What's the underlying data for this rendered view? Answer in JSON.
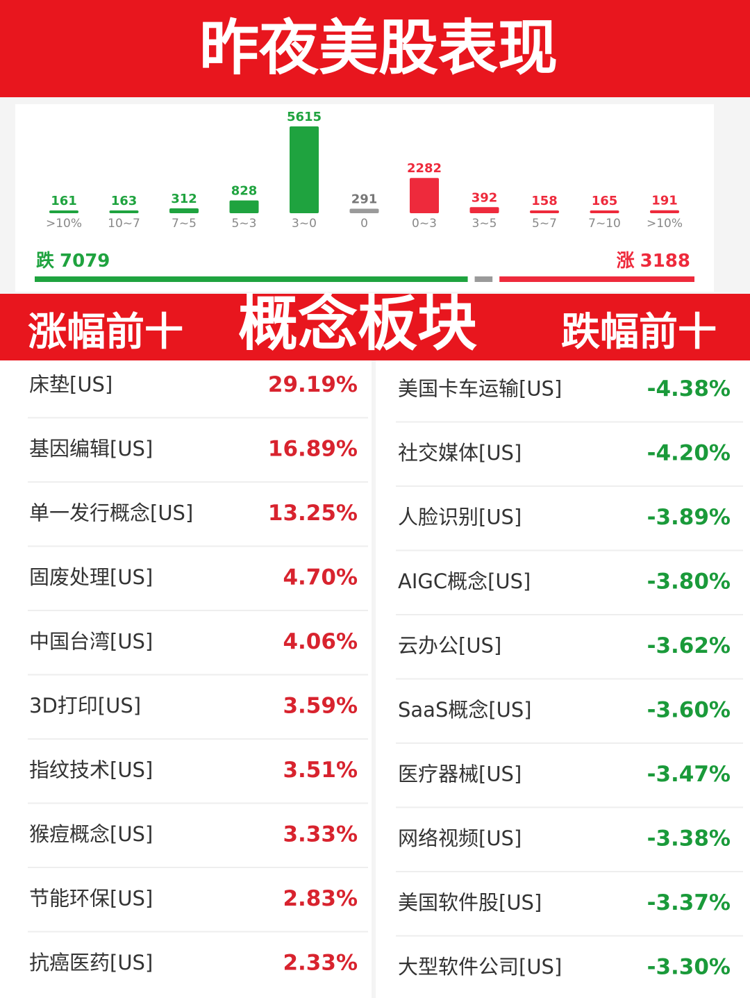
{
  "title": "昨夜美股表现",
  "chart_data": {
    "type": "bar",
    "categories": [
      ">10%",
      "10~7",
      "7~5",
      "5~3",
      "3~0",
      "0",
      "0~3",
      "3~5",
      "5~7",
      "7~10",
      ">10%"
    ],
    "values": [
      161,
      163,
      312,
      828,
      5615,
      291,
      2282,
      392,
      158,
      165,
      191
    ],
    "colors": [
      "#1fa33f",
      "#1fa33f",
      "#1fa33f",
      "#1fa33f",
      "#1fa33f",
      "#9a9a9a",
      "#ee2a3c",
      "#ee2a3c",
      "#ee2a3c",
      "#ee2a3c",
      "#ee2a3c"
    ]
  },
  "summary": {
    "fall_label": "跌",
    "fall": 7079,
    "rise_label": "涨",
    "rise": 3188
  },
  "banner": {
    "left": "涨幅前十",
    "center": "概念板块",
    "right": "跌幅前十"
  },
  "gainers": [
    {
      "name": "床垫[US]",
      "change": "29.19%"
    },
    {
      "name": "基因编辑[US]",
      "change": "16.89%"
    },
    {
      "name": "单一发行概念[US]",
      "change": "13.25%"
    },
    {
      "name": "固废处理[US]",
      "change": "4.70%"
    },
    {
      "name": "中国台湾[US]",
      "change": "4.06%"
    },
    {
      "name": "3D打印[US]",
      "change": "3.59%"
    },
    {
      "name": "指纹技术[US]",
      "change": "3.51%"
    },
    {
      "name": "猴痘概念[US]",
      "change": "3.33%"
    },
    {
      "name": "节能环保[US]",
      "change": "2.83%"
    },
    {
      "name": "抗癌医药[US]",
      "change": "2.33%"
    }
  ],
  "losers": [
    {
      "name": "美国卡车运输[US]",
      "change": "-4.38%"
    },
    {
      "name": "社交媒体[US]",
      "change": "-4.20%"
    },
    {
      "name": "人脸识别[US]",
      "change": "-3.89%"
    },
    {
      "name": "AIGC概念[US]",
      "change": "-3.80%"
    },
    {
      "name": "云办公[US]",
      "change": "-3.62%"
    },
    {
      "name": "SaaS概念[US]",
      "change": "-3.60%"
    },
    {
      "name": "医疗器械[US]",
      "change": "-3.47%"
    },
    {
      "name": "网络视频[US]",
      "change": "-3.38%"
    },
    {
      "name": "美国软件股[US]",
      "change": "-3.37%"
    },
    {
      "name": "大型软件公司[US]",
      "change": "-3.30%"
    }
  ]
}
